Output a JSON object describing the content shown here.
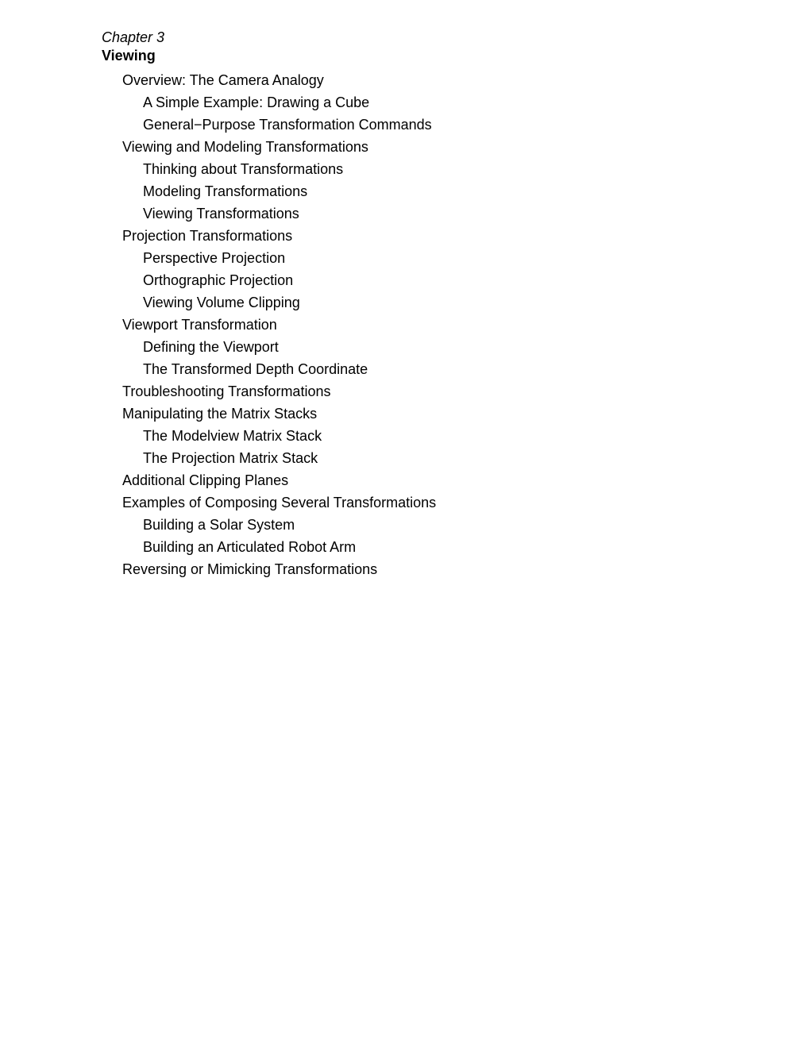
{
  "chapter": {
    "label": "Chapter 3",
    "title": "Viewing"
  },
  "toc": [
    {
      "level": 1,
      "text": "Overview: The Camera Analogy"
    },
    {
      "level": 2,
      "text": "A Simple Example: Drawing a Cube"
    },
    {
      "level": 2,
      "text": "General−Purpose Transformation Commands"
    },
    {
      "level": 1,
      "text": "Viewing and Modeling Transformations"
    },
    {
      "level": 2,
      "text": "Thinking about Transformations"
    },
    {
      "level": 2,
      "text": "Modeling Transformations"
    },
    {
      "level": 2,
      "text": "Viewing Transformations"
    },
    {
      "level": 1,
      "text": "Projection Transformations"
    },
    {
      "level": 2,
      "text": "Perspective Projection"
    },
    {
      "level": 2,
      "text": "Orthographic Projection"
    },
    {
      "level": 2,
      "text": "Viewing Volume Clipping"
    },
    {
      "level": 1,
      "text": "Viewport Transformation"
    },
    {
      "level": 2,
      "text": "Defining the Viewport"
    },
    {
      "level": 2,
      "text": "The Transformed Depth Coordinate"
    },
    {
      "level": 1,
      "text": "Troubleshooting Transformations"
    },
    {
      "level": 1,
      "text": "Manipulating the Matrix Stacks"
    },
    {
      "level": 2,
      "text": "The Modelview Matrix Stack"
    },
    {
      "level": 2,
      "text": "The Projection Matrix Stack"
    },
    {
      "level": 1,
      "text": "Additional Clipping Planes"
    },
    {
      "level": 1,
      "text": "Examples of Composing Several Transformations"
    },
    {
      "level": 2,
      "text": "Building a Solar System"
    },
    {
      "level": 2,
      "text": "Building an Articulated Robot Arm"
    },
    {
      "level": 1,
      "text": "Reversing or Mimicking Transformations"
    }
  ],
  "style": {
    "background_color": "#ffffff",
    "text_color": "#000000",
    "font_family": "Arial",
    "chapter_label_fontsize": 18,
    "chapter_title_fontsize": 18,
    "entry_fontsize": 18,
    "line_height": 28,
    "indent_level_1": 26,
    "indent_level_2": 52
  }
}
